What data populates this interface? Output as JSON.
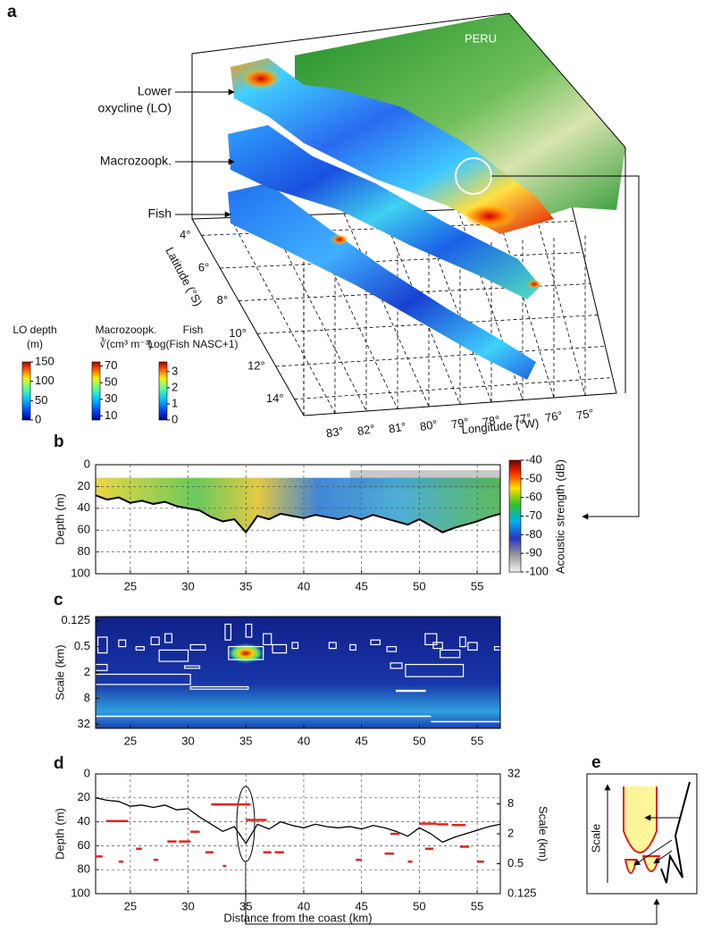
{
  "chart_data": [
    {
      "type": "map3d",
      "panel": "a",
      "country": "PERU",
      "layer_labels": [
        [
          "Lower",
          "oxycline (LO)"
        ],
        [
          "Macrozoopk."
        ],
        [
          "Fish"
        ]
      ],
      "xlabel": "Longitude (°W)",
      "ylabel": "Latitude (°S)",
      "xlim": [
        84,
        74
      ],
      "xticks": [
        {
          "value": 83,
          "label": "83°"
        },
        {
          "value": 82,
          "label": "82°"
        },
        {
          "value": 81,
          "label": "81°"
        },
        {
          "value": 80,
          "label": "80°"
        },
        {
          "value": 79,
          "label": "79°"
        },
        {
          "value": 78,
          "label": "78°"
        },
        {
          "value": 77,
          "label": "77°"
        },
        {
          "value": 76,
          "label": "76°"
        },
        {
          "value": 75,
          "label": "75°"
        }
      ],
      "ylim": [
        3,
        15
      ],
      "yticks": [
        {
          "value": 4,
          "label": "4°"
        },
        {
          "value": 6,
          "label": "6°"
        },
        {
          "value": 8,
          "label": "8°"
        },
        {
          "value": 10,
          "label": "10°"
        },
        {
          "value": 12,
          "label": "12°"
        },
        {
          "value": 14,
          "label": "14°"
        }
      ],
      "colorbars": [
        {
          "title": [
            "LO depth",
            "(m)"
          ],
          "lim": [
            0,
            150
          ],
          "ticks": [
            0,
            50,
            100,
            150
          ]
        },
        {
          "title": [
            "Macrozoopk.",
            "∛(cm³ m⁻³)"
          ],
          "lim": [
            5,
            75
          ],
          "ticks": [
            10,
            30,
            50,
            70
          ]
        },
        {
          "title": [
            "Fish",
            "Log(Fish NASC+1)"
          ],
          "lim": [
            0,
            3.6
          ],
          "ticks": [
            0,
            1,
            2,
            3
          ]
        }
      ]
    },
    {
      "type": "echogram",
      "panel": "b",
      "ylabel": "Depth (m)",
      "xlim": [
        22,
        57
      ],
      "xticks": [
        25,
        30,
        35,
        40,
        45,
        50,
        55
      ],
      "ylim": [
        0,
        100
      ],
      "yticks": [
        0,
        20,
        40,
        60,
        80,
        100
      ],
      "grid": true,
      "colorbar": {
        "title": "Acoustic strength (dB)",
        "lim": [
          -100,
          -40
        ],
        "ticks": [
          -40,
          -50,
          -60,
          -70,
          -80,
          -90,
          -100
        ]
      },
      "color": "#000000",
      "x": [
        22,
        23,
        24,
        25,
        26,
        27,
        28,
        29,
        30,
        31,
        32,
        33,
        34,
        35,
        36,
        37,
        38,
        39,
        40,
        41,
        42,
        43,
        44,
        45,
        46,
        47,
        48,
        49,
        50,
        51,
        52,
        53,
        54,
        55,
        56,
        57
      ],
      "values": [
        28,
        32,
        30,
        35,
        33,
        36,
        34,
        38,
        40,
        42,
        48,
        52,
        50,
        62,
        47,
        50,
        45,
        47,
        49,
        46,
        48,
        50,
        47,
        50,
        46,
        49,
        52,
        55,
        50,
        56,
        62,
        58,
        55,
        52,
        48,
        45
      ]
    },
    {
      "type": "wavelet",
      "panel": "c",
      "ylabel": "Scale (km)",
      "log_y": true,
      "xlim": [
        22,
        57
      ],
      "xticks": [
        25,
        30,
        35,
        40,
        45,
        50,
        55
      ],
      "ylim": [
        0.1,
        40
      ],
      "yticks": [
        0.125,
        0.5,
        2,
        8,
        32
      ],
      "box_color": "#ffffff",
      "boxes": [
        [
          22.2,
          23,
          0.3,
          0.7
        ],
        [
          24,
          24.6,
          0.35,
          0.5
        ],
        [
          25.5,
          26.2,
          0.5,
          0.6
        ],
        [
          26.8,
          27.5,
          0.3,
          0.45
        ],
        [
          28,
          28.6,
          0.25,
          0.4
        ],
        [
          27.5,
          30,
          0.6,
          1.1
        ],
        [
          30.2,
          31.5,
          0.45,
          0.6
        ],
        [
          29.7,
          31,
          1.4,
          1.6
        ],
        [
          33.2,
          33.7,
          0.15,
          0.35
        ],
        [
          33.5,
          36.5,
          0.5,
          1.0
        ],
        [
          35,
          35.5,
          0.15,
          0.3
        ],
        [
          36.5,
          37.2,
          0.25,
          0.45
        ],
        [
          37.3,
          38.5,
          0.45,
          0.7
        ],
        [
          39,
          39.5,
          0.4,
          0.55
        ],
        [
          42.2,
          42.8,
          0.4,
          0.55
        ],
        [
          44,
          44.5,
          0.45,
          0.6
        ],
        [
          45.8,
          46.6,
          0.35,
          0.45
        ],
        [
          47.2,
          48,
          0.5,
          0.65
        ],
        [
          47.5,
          48.5,
          1.2,
          1.6
        ],
        [
          22,
          23,
          1.3,
          1.8
        ],
        [
          22,
          30.2,
          2.2,
          3.8
        ],
        [
          30.2,
          35.2,
          4.3,
          4.9
        ],
        [
          48,
          50.5,
          5.2,
          5.5
        ],
        [
          50.5,
          51.5,
          0.25,
          0.45
        ],
        [
          51.2,
          52,
          0.4,
          0.55
        ],
        [
          51.8,
          53.5,
          0.6,
          0.9
        ],
        [
          53.5,
          54,
          0.3,
          0.5
        ],
        [
          54.2,
          55,
          0.4,
          0.6
        ],
        [
          56.5,
          57,
          0.5,
          0.6
        ],
        [
          48.8,
          53.8,
          1.3,
          2.5
        ]
      ],
      "ridges": [
        [
          22,
          51,
          21
        ],
        [
          51,
          57,
          28
        ]
      ]
    },
    {
      "type": "line",
      "panel": "d",
      "xlabel": "Distance from the coast (km)",
      "ylabel": "Depth (m)",
      "y2label": "Scale (km)",
      "xlim": [
        22,
        57
      ],
      "xticks": [
        25,
        30,
        35,
        40,
        45,
        50,
        55
      ],
      "ylim": [
        0,
        100
      ],
      "yticks": [
        0,
        20,
        40,
        60,
        80,
        100
      ],
      "grid": true,
      "y2lim": [
        32,
        0.125
      ],
      "y2ticks": [
        32,
        8,
        2,
        0.5,
        0.125
      ],
      "log_y2": true,
      "x": [
        22,
        23,
        24,
        25,
        26,
        27,
        28,
        29,
        30,
        31,
        32,
        33,
        34,
        35,
        36,
        37,
        38,
        39,
        40,
        41,
        42,
        43,
        44,
        45,
        46,
        47,
        48,
        49,
        50,
        51,
        52,
        53,
        54,
        55,
        56,
        57
      ],
      "series": [
        {
          "color": "#000000",
          "values": [
            20,
            22,
            23,
            27,
            26,
            28,
            26,
            30,
            29,
            36,
            42,
            48,
            44,
            58,
            42,
            46,
            40,
            43,
            45,
            42,
            44,
            45,
            44,
            46,
            43,
            45,
            48,
            52,
            45,
            50,
            57,
            53,
            50,
            47,
            44,
            42
          ]
        },
        {
          "axis": "y2",
          "color": "#e8201c",
          "segments": [
            [
              22.9,
              24.8,
              3.6
            ],
            [
              30.2,
              31,
              2.2
            ],
            [
              32,
              35.4,
              7.8
            ],
            [
              35,
              36.8,
              3.8
            ],
            [
              29.2,
              30.2,
              1.4
            ],
            [
              28.2,
              29,
              1.4
            ],
            [
              25.5,
              26,
              1
            ],
            [
              31.5,
              32.2,
              0.85
            ],
            [
              36.5,
              37.2,
              0.85
            ],
            [
              37.5,
              38.3,
              0.85
            ],
            [
              47.5,
              48.3,
              2
            ],
            [
              50,
              51.5,
              3.2
            ],
            [
              51.5,
              52.5,
              3.1
            ],
            [
              52.8,
              54,
              3
            ],
            [
              47,
              47.8,
              0.8
            ],
            [
              50.5,
              51.2,
              1
            ],
            [
              53.5,
              54.3,
              1.1
            ],
            [
              55,
              55.6,
              0.55
            ],
            [
              22,
              22.6,
              0.7
            ],
            [
              24,
              24.4,
              0.55
            ],
            [
              27,
              27.4,
              0.6
            ],
            [
              33,
              33.3,
              0.45
            ],
            [
              44.5,
              45,
              0.6
            ],
            [
              49,
              49.4,
              0.55
            ]
          ]
        }
      ]
    },
    {
      "type": "schematic",
      "panel": "e",
      "ylabel": "Scale"
    }
  ]
}
